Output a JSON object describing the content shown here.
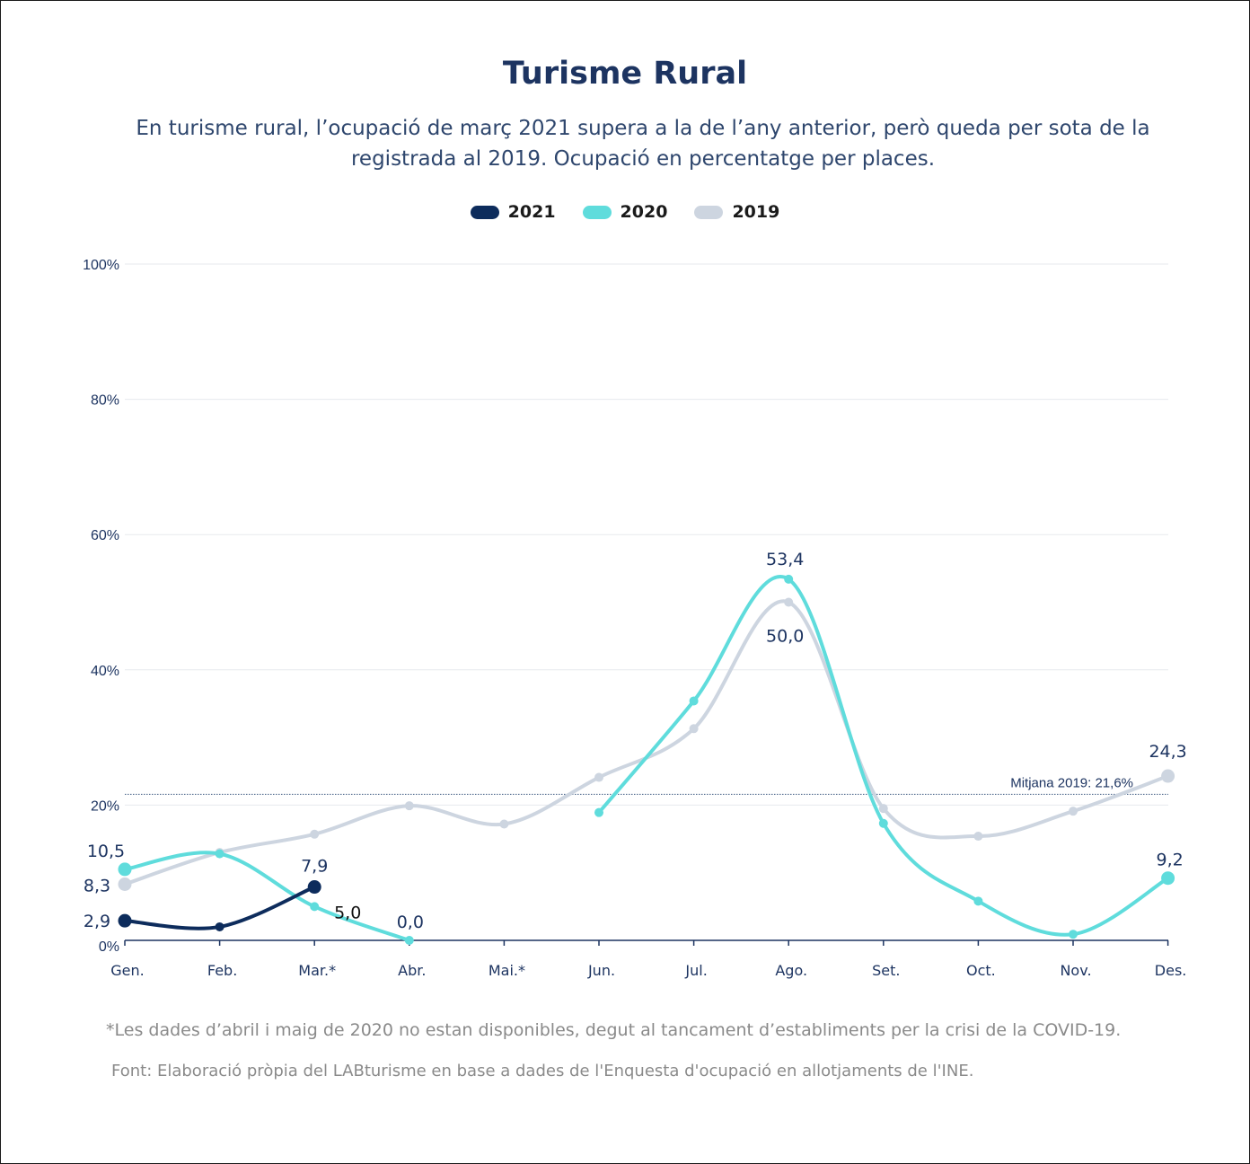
{
  "chart_data": {
    "type": "line",
    "title": "Turisme Rural",
    "subtitle": "En turisme rural, l’ocupació de març 2021 supera a la de l’any anterior, però queda per sota de la registrada al 2019. Ocupació en percentatge per places.",
    "categories": [
      "Gen.",
      "Feb.",
      "Mar.*",
      "Abr.",
      "Mai.*",
      "Jun.",
      "Jul.",
      "Ago.",
      "Set.",
      "Oct.",
      "Nov.",
      "Des."
    ],
    "ylim": [
      0,
      100
    ],
    "yticks": [
      "100%",
      "80%",
      "60%",
      "40%",
      "20%",
      "0%"
    ],
    "ytick_values": [
      100,
      80,
      60,
      40,
      20,
      0
    ],
    "grid": true,
    "legend_position": "top-center",
    "series": [
      {
        "name": "2021",
        "color": "#0d2c5c",
        "values": [
          2.9,
          2.0,
          7.9,
          null,
          null,
          null,
          null,
          null,
          null,
          null,
          null,
          null
        ]
      },
      {
        "name": "2020",
        "color": "#5fdcdc",
        "values": [
          10.5,
          12.8,
          5.0,
          0.0,
          null,
          18.9,
          35.4,
          53.4,
          17.3,
          5.8,
          0.9,
          9.2
        ]
      },
      {
        "name": "2019",
        "color": "#cdd5e0",
        "values": [
          8.3,
          13.0,
          15.7,
          19.9,
          17.2,
          24.1,
          31.3,
          50.0,
          19.5,
          15.4,
          19.1,
          24.3
        ]
      }
    ],
    "data_labels": [
      {
        "text": "10,5",
        "series": "2020",
        "index": 0,
        "value": 10.5
      },
      {
        "text": "8,3",
        "series": "2019",
        "index": 0,
        "value": 8.3
      },
      {
        "text": "2,9",
        "series": "2021",
        "index": 0,
        "value": 2.9
      },
      {
        "text": "7,9",
        "series": "2021",
        "index": 2,
        "value": 7.9
      },
      {
        "text": "5,0",
        "series": "2020",
        "index": 2,
        "value": 5.0
      },
      {
        "text": "0,0",
        "series": "2020",
        "index": 3,
        "value": 0.0
      },
      {
        "text": "53,4",
        "series": "2020",
        "index": 7,
        "value": 53.4
      },
      {
        "text": "50,0",
        "series": "2019",
        "index": 7,
        "value": 50.0
      },
      {
        "text": "24,3",
        "series": "2019",
        "index": 11,
        "value": 24.3
      },
      {
        "text": "9,2",
        "series": "2020",
        "index": 11,
        "value": 9.2
      }
    ],
    "reference_line": {
      "value": 21.6,
      "label": "Mitjana 2019: 21,6%"
    },
    "note": "*Les dades d’abril i maig de 2020 no estan disponibles, degut al tancament d’establiments per la crisi de la COVID-19.",
    "source": "Font: Elaboració pròpia del LABturisme en base a dades de l'Enquesta d'ocupació en allotjaments de l'INE."
  }
}
